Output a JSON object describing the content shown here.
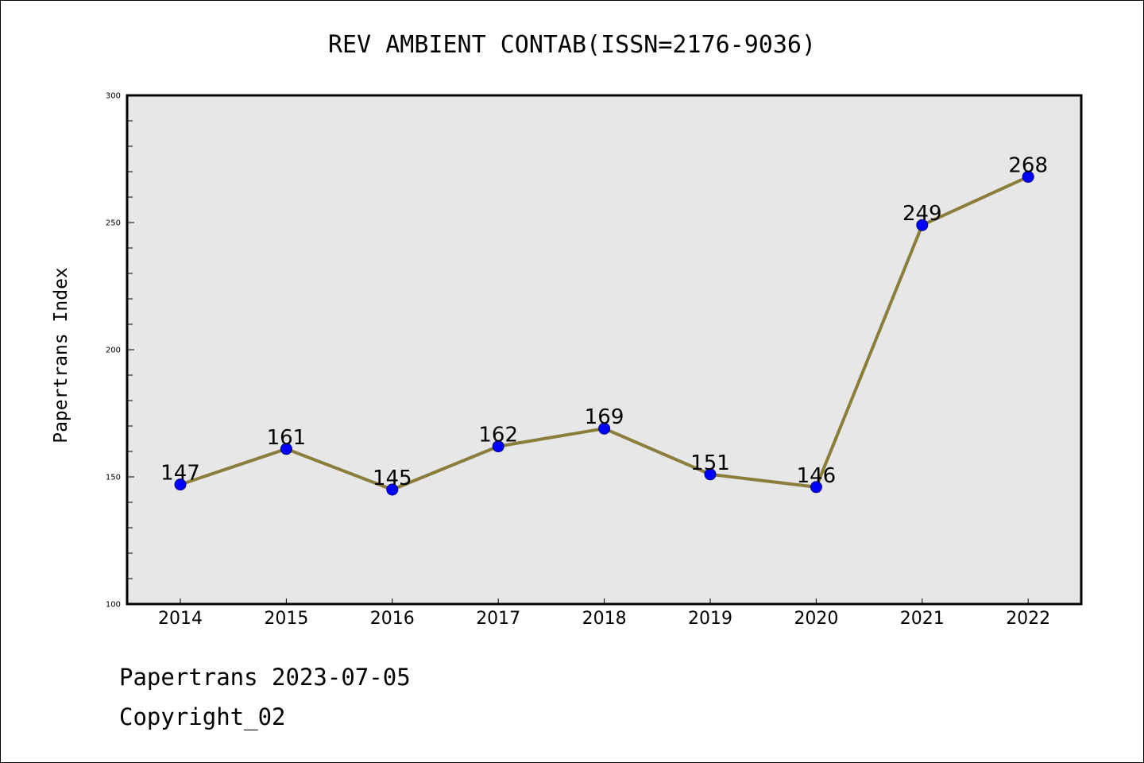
{
  "chart_data": {
    "type": "line",
    "title": "REV AMBIENT CONTAB(ISSN=2176-9036)",
    "xlabel": "",
    "ylabel": "Papertrans Index",
    "categories": [
      "2014",
      "2015",
      "2016",
      "2017",
      "2018",
      "2019",
      "2020",
      "2021",
      "2022"
    ],
    "series": [
      {
        "values": [
          147,
          161,
          145,
          162,
          169,
          151,
          146,
          249,
          268
        ]
      }
    ],
    "ylim": [
      100,
      300
    ],
    "yticks": [
      100,
      150,
      200,
      250,
      300
    ],
    "ytick_labels": [
      "100",
      "150",
      "200",
      "250",
      "300"
    ],
    "grid": false,
    "legend": "none",
    "data_labels": true,
    "colors": {
      "line": "#8b7d3a",
      "marker": "#0000ff",
      "marker_edge": "#000080",
      "plot_background": "#e7e7e7"
    }
  },
  "footer": {
    "line1": "Papertrans 2023-07-05",
    "line2": "Copyright_02"
  }
}
